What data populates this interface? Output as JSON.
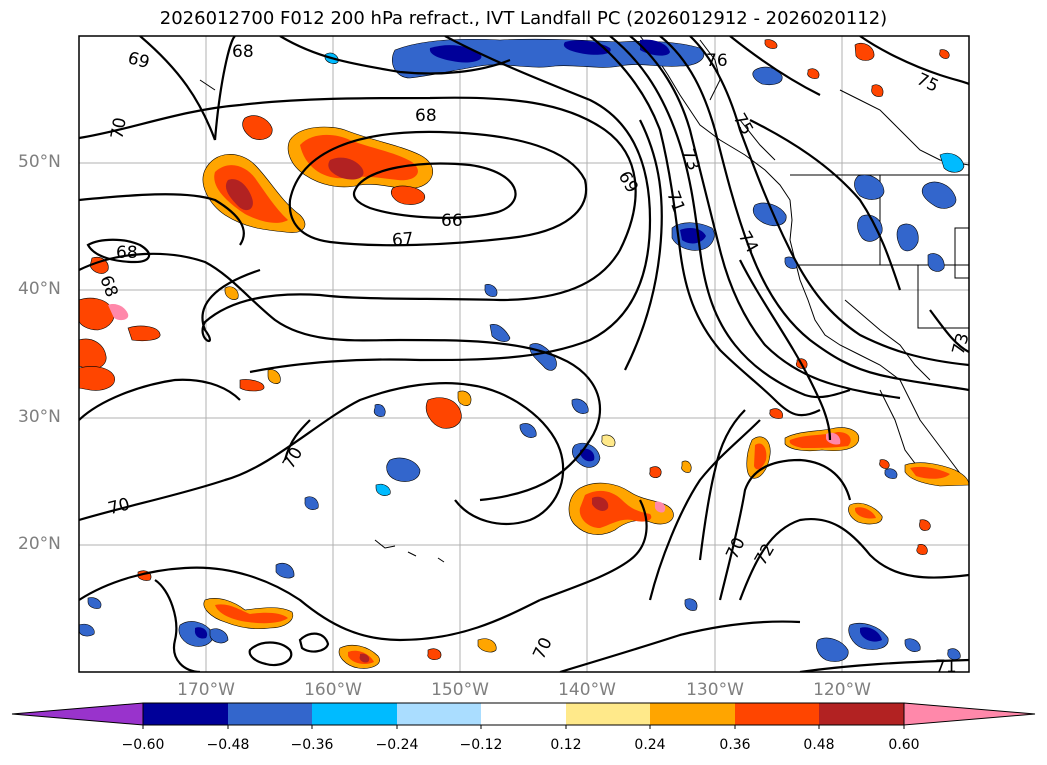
{
  "title": "2026012700 F012 200 hPa refract., IVT Landfall PC (2026012912 - 2026020112)",
  "axes": {
    "lat_ticks": [
      "50°N",
      "40°N",
      "30°N",
      "20°N"
    ],
    "lon_ticks": [
      "170°W",
      "160°W",
      "150°W",
      "140°W",
      "130°W",
      "120°W"
    ]
  },
  "contour_labels": [
    "69",
    "68",
    "70",
    "68",
    "66",
    "67",
    "68",
    "68",
    "69",
    "71",
    "73",
    "74",
    "75",
    "76",
    "75",
    "70",
    "70",
    "70",
    "70",
    "72",
    "73",
    "71"
  ],
  "colorbar": {
    "labels": [
      "−0.60",
      "−0.48",
      "−0.36",
      "−0.24",
      "−0.12",
      "0.12",
      "0.24",
      "0.36",
      "0.48",
      "0.60"
    ],
    "colors": [
      "#9933cc",
      "#000099",
      "#3366cc",
      "#00bbff",
      "#aaddff",
      "#ffffff",
      "#ffe98a",
      "#ffa500",
      "#ff4500",
      "#b22222",
      "#ff88aa"
    ],
    "extend": "both"
  },
  "colors": {
    "positive_light": "#ffe98a",
    "positive_mid": "#ffa500",
    "positive_high": "#ff4500",
    "positive_higher": "#b22222",
    "positive_max": "#ff88aa",
    "negative_light": "#aaddff",
    "negative_mid": "#00bbff",
    "negative_high": "#3366cc",
    "negative_max": "#000099",
    "grid": "#b0b0b0",
    "contour": "#000000"
  }
}
